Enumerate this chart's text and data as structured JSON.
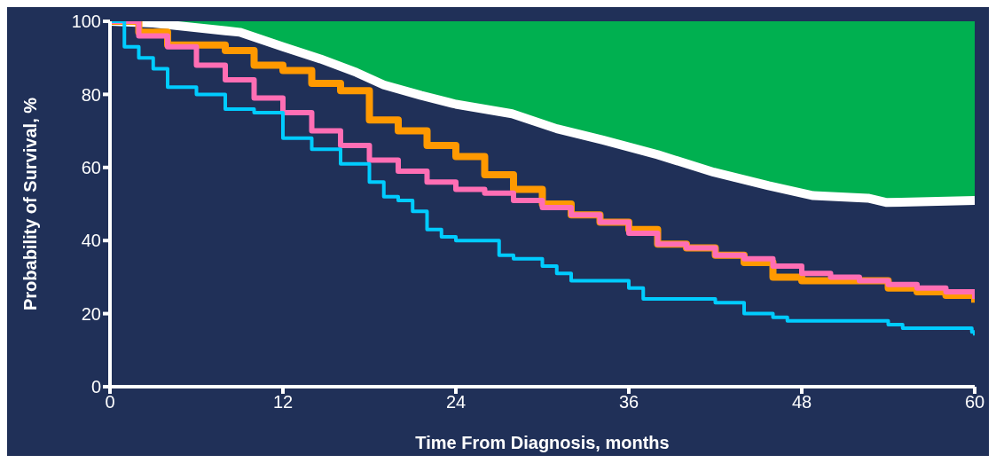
{
  "chart_data": {
    "type": "step",
    "xlabel": "Time From Diagnosis, months",
    "ylabel": "Probability of Survival, %",
    "xlim": [
      0,
      60
    ],
    "xticks": [
      0,
      12,
      24,
      36,
      48,
      60
    ],
    "ylim": [
      0,
      100
    ],
    "yticks": [
      0,
      20,
      40,
      60,
      80,
      100
    ],
    "series": [
      {
        "type": "line",
        "color": "#ffffff",
        "x": [
          0,
          3,
          9,
          12,
          14.6,
          17.1,
          19,
          21.6,
          24,
          27.9,
          31,
          34.2,
          38,
          41.9,
          45.7,
          48.8,
          52.6,
          53.9,
          60
        ],
        "values": [
          100,
          99.5,
          97,
          93,
          89.7,
          86,
          82.6,
          79.7,
          77.3,
          74.7,
          70.6,
          67.5,
          63.5,
          58.7,
          55,
          52.3,
          51.6,
          50.4,
          51
        ],
        "lower": [
          100,
          99.5,
          97,
          93,
          89.7,
          86,
          82.6,
          79.7,
          77.3,
          74.7,
          70.6,
          67.5,
          63.5,
          58.7,
          55,
          52.3,
          51.6,
          50.4,
          51
        ],
        "upper": [
          100,
          100,
          100,
          100,
          100,
          100,
          100,
          100,
          100,
          100,
          100,
          100,
          100,
          100,
          100,
          100,
          100,
          100,
          100
        ]
      },
      {
        "color": "#ff9900",
        "x": [
          0,
          2,
          4,
          8,
          10,
          12,
          14,
          16,
          18,
          20,
          22,
          24,
          26,
          28,
          30,
          32,
          34,
          36,
          38,
          40,
          42,
          44,
          46,
          48,
          50,
          52,
          54,
          56,
          58,
          60
        ],
        "values": [
          100,
          97,
          93.5,
          92,
          88,
          86.5,
          83,
          81,
          73,
          70,
          66,
          63,
          58,
          54,
          50,
          47,
          45,
          43,
          39,
          38,
          36,
          34,
          30,
          29,
          29,
          29,
          27,
          26,
          25,
          23
        ]
      },
      {
        "color": "#ff6eb4",
        "x": [
          0,
          2,
          4,
          6,
          8,
          10,
          12,
          14,
          16,
          18,
          20,
          22,
          24,
          26,
          28,
          30,
          32,
          34,
          36,
          38,
          40,
          42,
          44,
          46,
          48,
          50,
          52,
          54,
          56,
          58,
          60
        ],
        "values": [
          100,
          96,
          93,
          88,
          84,
          79,
          75,
          70,
          66,
          62,
          59,
          56,
          54,
          53,
          51,
          49,
          47,
          45,
          42,
          39,
          38,
          36,
          35,
          33,
          31,
          30,
          29,
          28,
          27,
          26,
          24
        ]
      },
      {
        "color": "#00ccff",
        "x": [
          0,
          1,
          2,
          3,
          4,
          6,
          8,
          10,
          12,
          14,
          16,
          18,
          19,
          20,
          21,
          22,
          23,
          24,
          26,
          27,
          28,
          30,
          31,
          32,
          34,
          36,
          37,
          40,
          42,
          44,
          46,
          47,
          50,
          54,
          55,
          59.8,
          60
        ],
        "values": [
          100,
          93,
          90,
          87,
          82,
          80,
          76,
          75,
          68,
          65,
          61,
          56,
          52,
          51,
          48,
          43,
          41,
          40,
          40,
          36,
          35,
          33,
          31,
          29,
          29,
          27,
          24,
          24,
          23,
          20,
          19,
          18,
          18,
          17,
          16,
          15,
          14
        ]
      }
    ]
  }
}
